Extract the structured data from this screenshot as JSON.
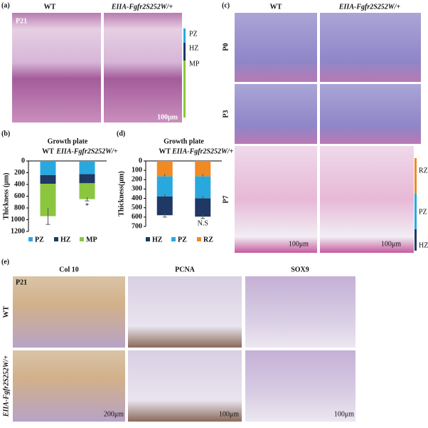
{
  "panels": {
    "a": {
      "label": "(a)",
      "columns": [
        "WT",
        "EIIA-Fgfr2S252W/+"
      ],
      "age": "P21",
      "zones": [
        "PZ",
        "HZ",
        "MP"
      ],
      "scale": "100μm"
    },
    "c": {
      "label": "(c)",
      "columns": [
        "WT",
        "EIIA-Fgfr2S252W/+"
      ],
      "rows": [
        "P0",
        "P3",
        "P7"
      ],
      "zones": [
        "RZ",
        "PZ",
        "HZ"
      ],
      "scales": [
        "100μm",
        "100μm"
      ]
    },
    "e": {
      "label": "(e)",
      "columns": [
        "Col 10",
        "PCNA",
        "SOX9"
      ],
      "age": "P21",
      "rows": [
        "WT",
        "EIIA-Fgfr2S252W/+"
      ],
      "scales": [
        "200μm",
        "100μm",
        "100μm"
      ]
    }
  },
  "chart_data": [
    {
      "type": "bar",
      "panel": "(b)",
      "title": "Growth plate",
      "y_label": "Thickness (μm)",
      "categories": [
        "WT",
        "EIIA-Fgfr2S252W/+"
      ],
      "stacked": true,
      "y_inverted": true,
      "ylim": [
        0,
        1200
      ],
      "yticks": [
        0,
        200,
        400,
        600,
        800,
        1000,
        1200
      ],
      "series": [
        {
          "name": "PZ",
          "color": "#29a8e0",
          "values": [
            240,
            225
          ],
          "errors": [
            null,
            null
          ]
        },
        {
          "name": "HZ",
          "color": "#1f3864",
          "values": [
            150,
            155
          ],
          "errors": [
            10,
            15
          ]
        },
        {
          "name": "MP",
          "color": "#8cc63f",
          "values": [
            550,
            270
          ],
          "errors": [
            140,
            30
          ]
        }
      ],
      "annotations": [
        {
          "text": "*"
        }
      ],
      "legend": "bottom",
      "legend_reversed": false
    },
    {
      "type": "bar",
      "panel": "(d)",
      "title": "Growth plate",
      "y_label": "Thickness(μm)",
      "categories": [
        "WT",
        "EIIA-Fgfr2S252W/+"
      ],
      "stacked": true,
      "y_inverted": true,
      "ylim": [
        0,
        700
      ],
      "yticks": [
        0,
        100,
        200,
        300,
        400,
        500,
        600,
        700
      ],
      "series": [
        {
          "name": "RZ",
          "color": "#f08a24",
          "values": [
            165,
            165
          ],
          "errors": [
            25,
            25
          ]
        },
        {
          "name": "PZ",
          "color": "#29a8e0",
          "values": [
            215,
            235
          ],
          "errors": [
            25,
            30
          ]
        },
        {
          "name": "HZ",
          "color": "#1f3864",
          "values": [
            200,
            195
          ],
          "errors": [
            20,
            20
          ]
        }
      ],
      "annotations": [
        {
          "text": "N.S"
        }
      ],
      "legend": "bottom",
      "legend_reversed": true
    }
  ]
}
